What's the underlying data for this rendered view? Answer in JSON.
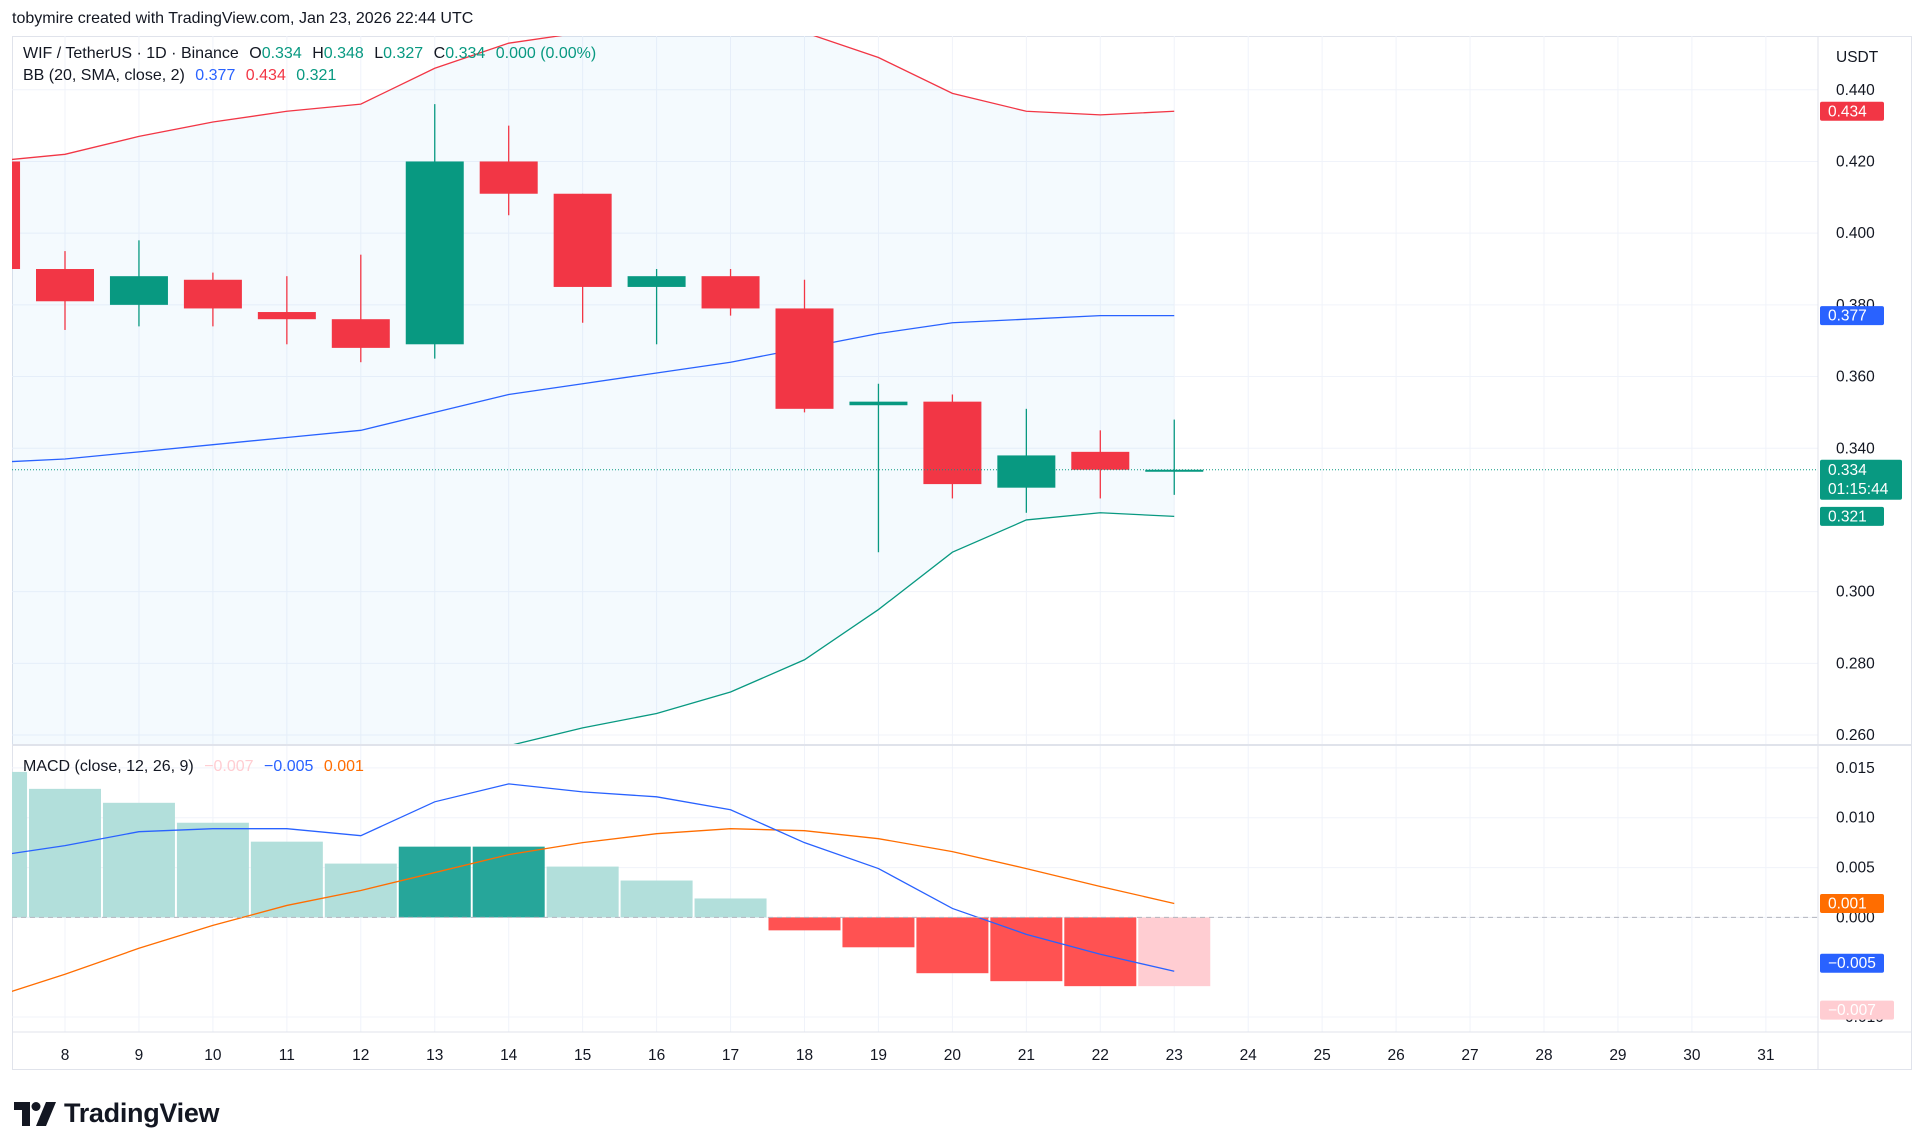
{
  "header": {
    "attribution": "tobymire created with TradingView.com, Jan 23, 2026 22:44 UTC"
  },
  "price_legend": {
    "symbol": "WIF / TetherUS · 1D · Binance",
    "o_label": "O",
    "o_value": "0.334",
    "h_label": "H",
    "h_value": "0.348",
    "l_label": "L",
    "l_value": "0.327",
    "c_label": "C",
    "c_value": "0.334",
    "change": "0.000 (0.00%)",
    "bb_label": "BB (20, SMA, close, 2)",
    "bb_basis": "0.377",
    "bb_upper": "0.434",
    "bb_lower": "0.321"
  },
  "macd_legend": {
    "label": "MACD (close, 12, 26, 9)",
    "hist": "−0.007",
    "macd": "−0.005",
    "signal": "0.001"
  },
  "price_axis": {
    "currency": "USDT",
    "ticks": [
      "0.440",
      "0.420",
      "0.400",
      "0.380",
      "0.360",
      "0.340",
      "0.300",
      "0.280",
      "0.260"
    ],
    "tags": {
      "bb_upper": "0.434",
      "bb_basis": "0.377",
      "last_price": "0.334",
      "countdown": "01:15:44",
      "bb_lower": "0.321"
    }
  },
  "macd_axis": {
    "ticks": [
      "0.015",
      "0.010",
      "0.005",
      "0.000",
      "−0.010"
    ],
    "tags": {
      "signal": "0.001",
      "macd": "−0.005",
      "hist": "−0.007"
    }
  },
  "colors": {
    "up": "#089981",
    "down": "#f23645",
    "bb_upper": "#f23645",
    "bb_basis": "#2962ff",
    "bb_lower": "#089981",
    "bb_fill": "#2196f3",
    "macd_line": "#2962ff",
    "signal_line": "#ff6d00",
    "hist_up_strong": "#26a69a",
    "hist_up_weak": "#b2dfdb",
    "hist_down_strong": "#ff5252",
    "hist_down_weak": "#ffcdd2"
  },
  "footer": {
    "logo_text": "TradingView"
  },
  "chart_data": [
    {
      "type": "candlestick",
      "title": "WIF / TetherUS · 1D · Binance",
      "x_ticks": [
        "8",
        "9",
        "10",
        "11",
        "12",
        "13",
        "14",
        "15",
        "16",
        "17",
        "18",
        "19",
        "20",
        "21",
        "22",
        "23",
        "24",
        "25",
        "26",
        "27",
        "28",
        "29",
        "30",
        "31"
      ],
      "y_ticks": [
        0.44,
        0.42,
        0.4,
        0.38,
        0.36,
        0.34,
        0.3,
        0.28,
        0.26
      ],
      "ylim": [
        0.2575,
        0.455
      ],
      "candles": [
        {
          "x": 7,
          "o": 0.42,
          "h": 0.42,
          "l": 0.39,
          "c": 0.39
        },
        {
          "x": 8,
          "o": 0.39,
          "h": 0.395,
          "l": 0.373,
          "c": 0.381
        },
        {
          "x": 9,
          "o": 0.38,
          "h": 0.398,
          "l": 0.374,
          "c": 0.388
        },
        {
          "x": 10,
          "o": 0.387,
          "h": 0.389,
          "l": 0.374,
          "c": 0.379
        },
        {
          "x": 11,
          "o": 0.378,
          "h": 0.388,
          "l": 0.369,
          "c": 0.376
        },
        {
          "x": 12,
          "o": 0.376,
          "h": 0.394,
          "l": 0.364,
          "c": 0.368
        },
        {
          "x": 13,
          "o": 0.369,
          "h": 0.436,
          "l": 0.365,
          "c": 0.42
        },
        {
          "x": 14,
          "o": 0.42,
          "h": 0.43,
          "l": 0.405,
          "c": 0.411
        },
        {
          "x": 15,
          "o": 0.411,
          "h": 0.411,
          "l": 0.375,
          "c": 0.385
        },
        {
          "x": 16,
          "o": 0.385,
          "h": 0.39,
          "l": 0.369,
          "c": 0.388
        },
        {
          "x": 17,
          "o": 0.388,
          "h": 0.39,
          "l": 0.377,
          "c": 0.379
        },
        {
          "x": 18,
          "o": 0.379,
          "h": 0.387,
          "l": 0.35,
          "c": 0.351
        },
        {
          "x": 19,
          "o": 0.352,
          "h": 0.358,
          "l": 0.311,
          "c": 0.353
        },
        {
          "x": 20,
          "o": 0.353,
          "h": 0.355,
          "l": 0.326,
          "c": 0.33
        },
        {
          "x": 21,
          "o": 0.329,
          "h": 0.351,
          "l": 0.322,
          "c": 0.338
        },
        {
          "x": 22,
          "o": 0.339,
          "h": 0.345,
          "l": 0.326,
          "c": 0.334
        },
        {
          "x": 23,
          "o": 0.334,
          "h": 0.348,
          "l": 0.327,
          "c": 0.334
        }
      ],
      "series": [
        {
          "name": "Upper",
          "x": [
            7,
            8,
            9,
            10,
            11,
            12,
            13,
            14,
            15,
            16,
            17,
            18,
            19,
            20,
            21,
            22,
            23
          ],
          "values": [
            0.42,
            0.422,
            0.427,
            0.431,
            0.434,
            0.436,
            0.446,
            0.453,
            0.456,
            0.458,
            0.459,
            0.456,
            0.449,
            0.439,
            0.434,
            0.433,
            0.434
          ]
        },
        {
          "name": "Basis",
          "x": [
            7,
            8,
            9,
            10,
            11,
            12,
            13,
            14,
            15,
            16,
            17,
            18,
            19,
            20,
            21,
            22,
            23
          ],
          "values": [
            0.336,
            0.337,
            0.339,
            0.341,
            0.343,
            0.345,
            0.35,
            0.355,
            0.358,
            0.361,
            0.364,
            0.368,
            0.372,
            0.375,
            0.376,
            0.377,
            0.377
          ]
        },
        {
          "name": "Lower",
          "x": [
            7,
            8,
            9,
            10,
            11,
            12,
            13,
            14,
            15,
            16,
            17,
            18,
            19,
            20,
            21,
            22,
            23
          ],
          "values": [
            0.248,
            0.25,
            0.252,
            0.251,
            0.252,
            0.254,
            0.254,
            0.257,
            0.262,
            0.266,
            0.272,
            0.281,
            0.295,
            0.311,
            0.32,
            0.322,
            0.321
          ]
        }
      ],
      "last_price": 0.334
    },
    {
      "type": "bar",
      "title": "MACD (close, 12, 26, 9)",
      "y_ticks": [
        0.015,
        0.01,
        0.005,
        0.0,
        -0.01
      ],
      "ylim": [
        -0.0115,
        0.0172
      ],
      "x": [
        7,
        8,
        9,
        10,
        11,
        12,
        13,
        14,
        15,
        16,
        17,
        18,
        19,
        20,
        21,
        22,
        23
      ],
      "series": [
        {
          "name": "Histogram",
          "values": [
            0.0146,
            0.0129,
            0.0115,
            0.0095,
            0.0076,
            0.0054,
            0.0071,
            0.0071,
            0.0051,
            0.0037,
            0.0019,
            -0.0013,
            -0.003,
            -0.0056,
            -0.0064,
            -0.0069,
            -0.0069
          ]
        },
        {
          "name": "MACD",
          "values": [
            0.0061,
            0.0072,
            0.0086,
            0.0089,
            0.0089,
            0.0082,
            0.0116,
            0.0134,
            0.0126,
            0.0121,
            0.0108,
            0.0075,
            0.0049,
            0.0009,
            -0.0017,
            -0.0037,
            -0.0054
          ]
        },
        {
          "name": "Signal",
          "values": [
            -0.0081,
            -0.0057,
            -0.0031,
            -0.0008,
            0.0012,
            0.0027,
            0.0045,
            0.0063,
            0.0075,
            0.0084,
            0.0089,
            0.0087,
            0.0079,
            0.0066,
            0.0049,
            0.0031,
            0.0014
          ]
        }
      ]
    }
  ]
}
